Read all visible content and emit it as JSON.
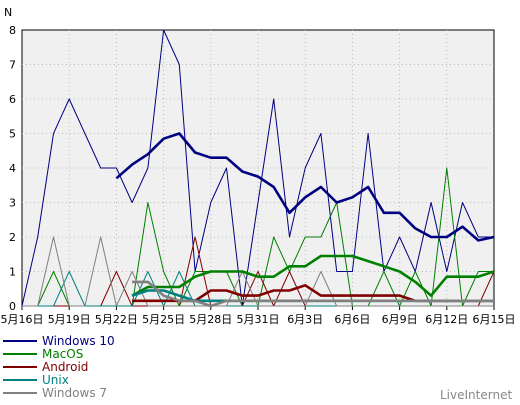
{
  "chart_data": {
    "type": "line",
    "y_unit_label": "N",
    "ylim": [
      0,
      8
    ],
    "y_ticks": [
      "0",
      "1",
      "2",
      "3",
      "4",
      "5",
      "6",
      "7",
      "8"
    ],
    "grid": true,
    "legend_position": "bottom-left",
    "x": [
      "5月16日",
      "5月17日",
      "5月18日",
      "5月19日",
      "5月20日",
      "5月21日",
      "5月22日",
      "5月23日",
      "5月24日",
      "5月25日",
      "5月26日",
      "5月27日",
      "5月28日",
      "5月29日",
      "5月30日",
      "5月31日",
      "6月1日",
      "6月2日",
      "6月3日",
      "6月4日",
      "6月5日",
      "6月6日",
      "6月7日",
      "6月8日",
      "6月9日",
      "6月10日",
      "6月11日",
      "6月12日",
      "6月13日",
      "6月14日",
      "6月15日"
    ],
    "x_tick_labels": [
      "5月16日",
      "5月19日",
      "5月22日",
      "5月25日",
      "5月28日",
      "5月31日",
      "6月3日",
      "6月6日",
      "6月9日",
      "6月12日",
      "6月15日"
    ],
    "series": [
      {
        "name": "Windows 10",
        "color": "#000080",
        "values": [
          0,
          2,
          5,
          6,
          5,
          4,
          4,
          3,
          4,
          8,
          7,
          1,
          3,
          4,
          0,
          3,
          6,
          2,
          4,
          5,
          1,
          1,
          5,
          1,
          2,
          1,
          3,
          1,
          3,
          2,
          2
        ]
      },
      {
        "name": "MacOS",
        "color": "#008000",
        "values": [
          0,
          0,
          1,
          0,
          0,
          0,
          0,
          0,
          3,
          1,
          0,
          1,
          1,
          1,
          0,
          0,
          2,
          1,
          2,
          2,
          3,
          0,
          0,
          1,
          0,
          1,
          0,
          4,
          0,
          1,
          1
        ]
      },
      {
        "name": "Android",
        "color": "#800000",
        "values": [
          0,
          0,
          0,
          0,
          0,
          0,
          1,
          0,
          0,
          0,
          0,
          2,
          0,
          0,
          0,
          1,
          0,
          1,
          0,
          0,
          0,
          0,
          0,
          0,
          0,
          0,
          0,
          0,
          0,
          0,
          1
        ]
      },
      {
        "name": "Unix",
        "color": "#008080",
        "values": [
          0,
          0,
          0,
          1,
          0,
          0,
          0,
          0,
          1,
          0,
          1,
          0,
          0,
          0,
          0,
          0,
          0,
          0,
          0,
          0,
          0,
          0,
          0,
          0,
          0,
          0,
          0,
          0,
          0,
          0,
          0
        ]
      },
      {
        "name": "Windows 7",
        "color": "#808080",
        "values": [
          0,
          0,
          2,
          0,
          0,
          2,
          0,
          1,
          0,
          0,
          0,
          0,
          0,
          0,
          1,
          0,
          0,
          0,
          0,
          1,
          0,
          0,
          0,
          0,
          0,
          0,
          0,
          0,
          0,
          0,
          0
        ]
      }
    ],
    "moving_average": [
      {
        "series": "Windows 10",
        "start": 6,
        "values": [
          3.7,
          4.1,
          4.4,
          4.85,
          5.0,
          4.45,
          4.3,
          4.3,
          3.9,
          3.75,
          3.45,
          2.7,
          3.15,
          3.45,
          3.0,
          3.15,
          3.45,
          2.7,
          2.7,
          2.25,
          2.0,
          2.0,
          2.3,
          1.9,
          2.0
        ]
      },
      {
        "series": "MacOS",
        "start": 7,
        "values": [
          0.3,
          0.55,
          0.55,
          0.55,
          0.85,
          1.0,
          1.0,
          1.0,
          0.85,
          0.85,
          1.15,
          1.15,
          1.45,
          1.45,
          1.45,
          1.3,
          1.15,
          1.0,
          0.7,
          0.3,
          0.85,
          0.85,
          0.85,
          1.0
        ]
      },
      {
        "series": "Android",
        "start": 7,
        "values": [
          0.15,
          0.15,
          0.15,
          0.15,
          0.15,
          0.45,
          0.45,
          0.3,
          0.3,
          0.45,
          0.45,
          0.6,
          0.3,
          0.3,
          0.3,
          0.3,
          0.3,
          0.3,
          0.15,
          0.15,
          0.15,
          0.15,
          0.15,
          0.15
        ]
      },
      {
        "series": "Unix",
        "start": 7,
        "values": [
          0.3,
          0.45,
          0.45,
          0.3,
          0.15,
          0.15,
          0.15,
          0.15,
          0.15,
          0.15,
          0.15,
          0.15,
          0.15,
          0.15,
          0.15,
          0.15,
          0.15,
          0.15,
          0.15,
          0.15,
          0.15,
          0.15,
          0.15,
          0.15
        ]
      },
      {
        "series": "Windows 7",
        "start": 7,
        "values": [
          0.7,
          0.7,
          0.3,
          0.15,
          0.15,
          0.0,
          0.15,
          0.15,
          0.15,
          0.15,
          0.15,
          0.15,
          0.15,
          0.15,
          0.15,
          0.15,
          0.15,
          0.15,
          0.15,
          0.15,
          0.15,
          0.15,
          0.15,
          0.15
        ]
      }
    ],
    "watermark": "LiveInternet"
  }
}
